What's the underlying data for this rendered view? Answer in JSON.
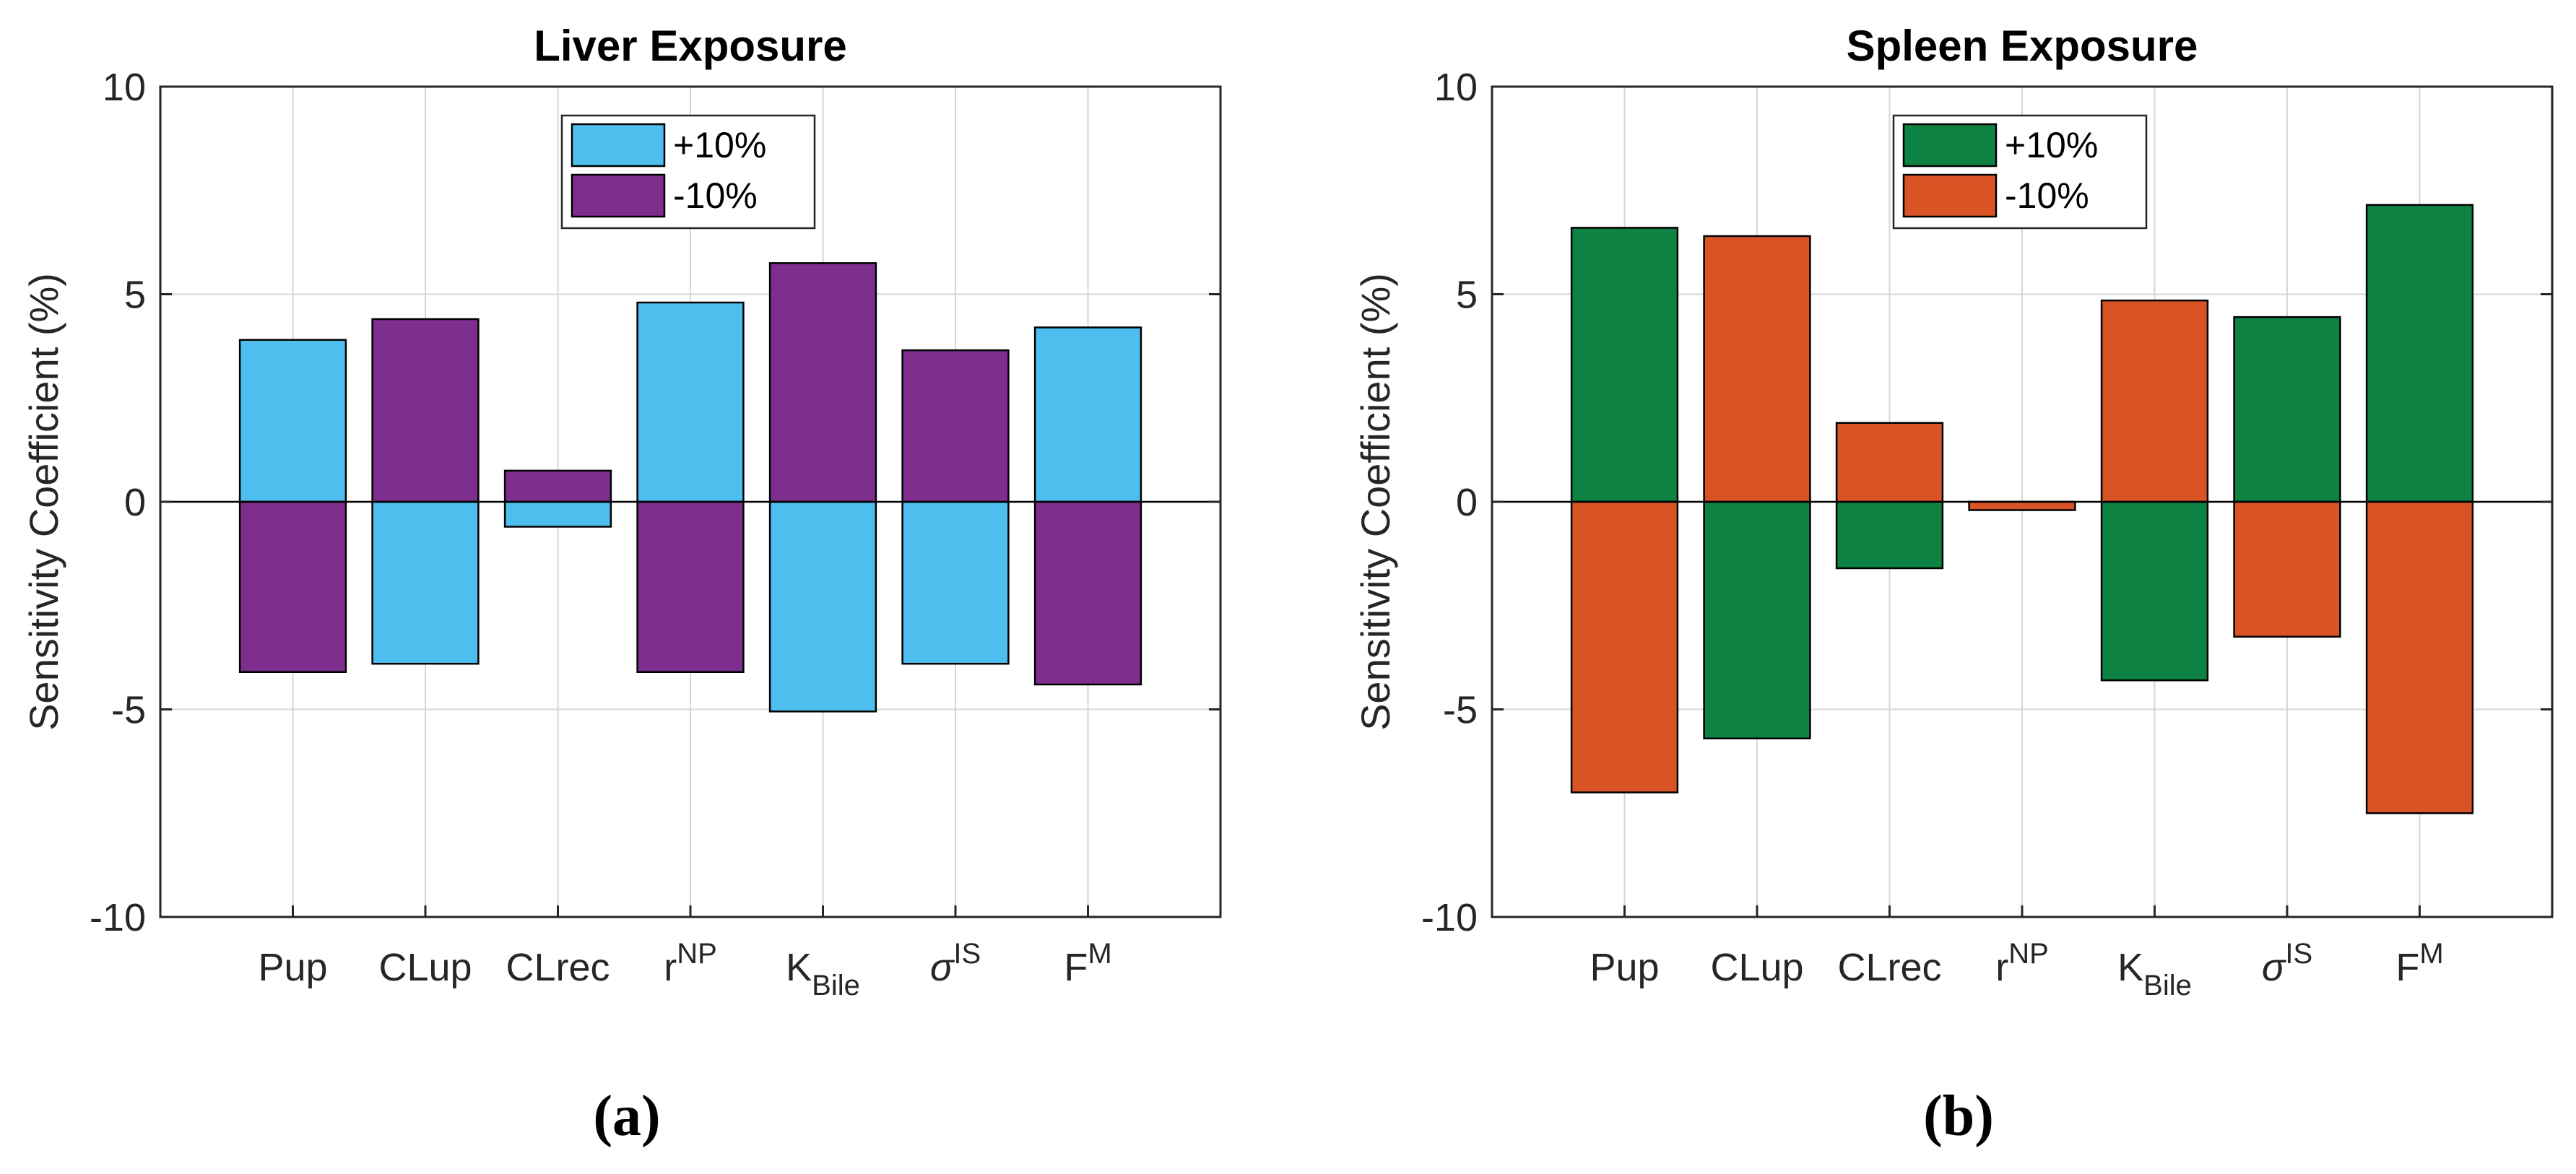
{
  "chart_data": [
    {
      "type": "bar",
      "title": "Liver Exposure",
      "panel_label": "(a)",
      "ylabel": "Sensitivity Coefficient (%)",
      "xlabel": "",
      "ylim": [
        -10,
        10
      ],
      "yticks": [
        -10,
        -5,
        0,
        5,
        10
      ],
      "grid": true,
      "legend_position": "top-center",
      "categories": [
        {
          "base": "Pup",
          "sup": "",
          "sub": ""
        },
        {
          "base": "CLup",
          "sup": "",
          "sub": ""
        },
        {
          "base": "CLrec",
          "sup": "",
          "sub": ""
        },
        {
          "base": "r",
          "sup": "NP",
          "sub": ""
        },
        {
          "base": "K",
          "sup": "",
          "sub": "Bile"
        },
        {
          "base": "σ",
          "sup": "IS",
          "sub": "",
          "italic": true
        },
        {
          "base": "F",
          "sup": "M",
          "sub": ""
        }
      ],
      "series": [
        {
          "name": "+10%",
          "color": "#4DBEEE",
          "values": [
            3.9,
            -3.9,
            -0.6,
            4.8,
            -5.05,
            -3.9,
            4.2
          ]
        },
        {
          "name": "-10%",
          "color": "#7E2F8E",
          "values": [
            -4.1,
            4.4,
            0.75,
            -4.1,
            5.75,
            3.65,
            -4.4
          ]
        }
      ]
    },
    {
      "type": "bar",
      "title": "Spleen Exposure",
      "panel_label": "(b)",
      "ylabel": "Sensitivity Coefficient (%)",
      "xlabel": "",
      "ylim": [
        -10,
        10
      ],
      "yticks": [
        -10,
        -5,
        0,
        5,
        10
      ],
      "grid": true,
      "legend_position": "top-center",
      "categories": [
        {
          "base": "Pup",
          "sup": "",
          "sub": ""
        },
        {
          "base": "CLup",
          "sup": "",
          "sub": ""
        },
        {
          "base": "CLrec",
          "sup": "",
          "sub": ""
        },
        {
          "base": "r",
          "sup": "NP",
          "sub": ""
        },
        {
          "base": "K",
          "sup": "",
          "sub": "Bile"
        },
        {
          "base": "σ",
          "sup": "IS",
          "sub": "",
          "italic": true
        },
        {
          "base": "F",
          "sup": "M",
          "sub": ""
        }
      ],
      "series": [
        {
          "name": "+10%",
          "color": "#0E8243",
          "values": [
            6.6,
            -5.7,
            -1.6,
            0.0,
            -4.3,
            4.45,
            7.15
          ]
        },
        {
          "name": "-10%",
          "color": "#D95425",
          "values": [
            -7.0,
            6.4,
            1.9,
            -0.2,
            4.85,
            -3.25,
            -7.5
          ]
        }
      ]
    }
  ]
}
